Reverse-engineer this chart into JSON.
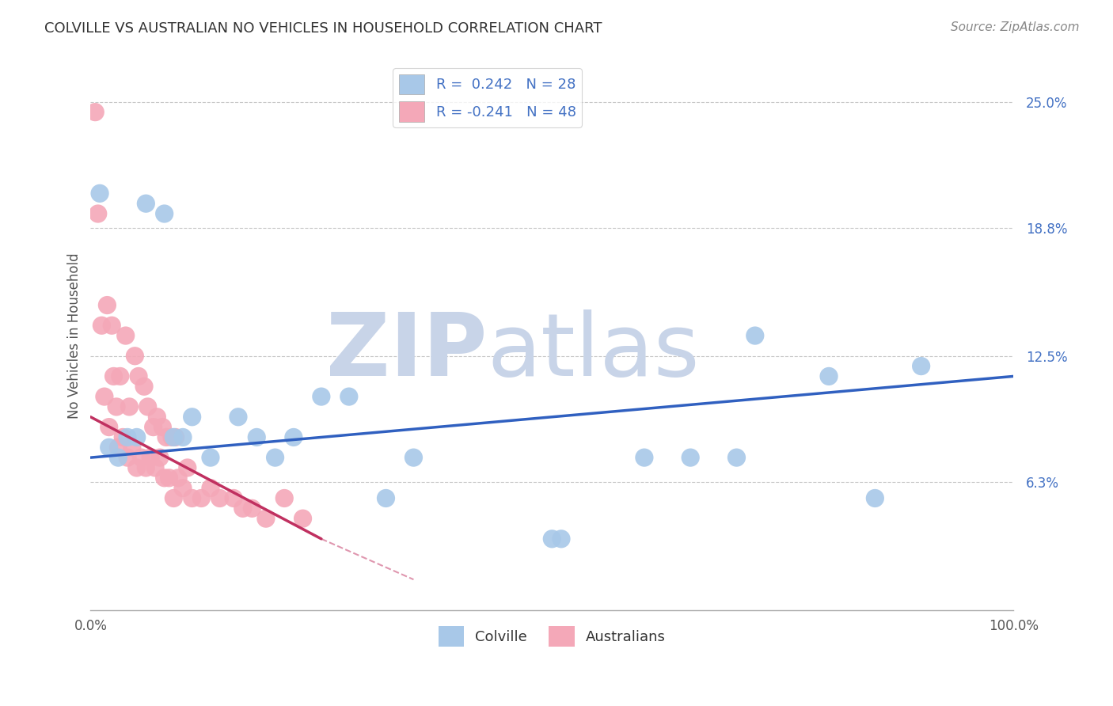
{
  "title": "COLVILLE VS AUSTRALIAN NO VEHICLES IN HOUSEHOLD CORRELATION CHART",
  "source_text": "Source: ZipAtlas.com",
  "ylabel": "No Vehicles in Household",
  "legend_colville": "Colville",
  "legend_australians": "Australians",
  "r_colville": 0.242,
  "n_colville": 28,
  "r_australians": -0.241,
  "n_australians": 48,
  "xlim": [
    0,
    100
  ],
  "ylim": [
    0,
    27
  ],
  "yticks": [
    6.3,
    12.5,
    18.8,
    25.0
  ],
  "ytick_labels": [
    "6.3%",
    "12.5%",
    "18.8%",
    "25.0%"
  ],
  "xtick_labels": [
    "0.0%",
    "100.0%"
  ],
  "colville_color": "#A8C8E8",
  "australians_color": "#F4A8B8",
  "colville_line_color": "#3060C0",
  "australians_line_color": "#C03060",
  "background_color": "#FFFFFF",
  "grid_color": "#C8C8C8",
  "watermark_zip": "ZIP",
  "watermark_atlas": "atlas",
  "watermark_color_zip": "#C8D4E8",
  "watermark_color_atlas": "#C8D4E8",
  "colville_x": [
    1.0,
    2.0,
    3.0,
    4.0,
    5.0,
    6.0,
    8.0,
    9.0,
    10.0,
    11.0,
    13.0,
    16.0,
    18.0,
    20.0,
    22.0,
    25.0,
    28.0,
    32.0,
    35.0,
    50.0,
    51.0,
    60.0,
    65.0,
    70.0,
    72.0,
    80.0,
    85.0,
    90.0
  ],
  "colville_y": [
    20.5,
    8.0,
    7.5,
    8.5,
    8.5,
    20.0,
    19.5,
    8.5,
    8.5,
    9.5,
    7.5,
    9.5,
    8.5,
    7.5,
    8.5,
    10.5,
    10.5,
    5.5,
    7.5,
    3.5,
    3.5,
    7.5,
    7.5,
    7.5,
    13.5,
    11.5,
    5.5,
    12.0
  ],
  "australians_x": [
    0.5,
    0.8,
    1.2,
    1.5,
    1.8,
    2.0,
    2.3,
    2.5,
    2.8,
    3.0,
    3.2,
    3.5,
    3.8,
    4.0,
    4.2,
    4.5,
    4.8,
    5.0,
    5.2,
    5.5,
    5.8,
    6.0,
    6.2,
    6.5,
    6.8,
    7.0,
    7.2,
    7.5,
    7.8,
    8.0,
    8.2,
    8.5,
    8.8,
    9.0,
    9.2,
    9.5,
    10.0,
    10.5,
    11.0,
    12.0,
    13.0,
    14.0,
    15.5,
    16.5,
    17.5,
    19.0,
    21.0,
    23.0
  ],
  "australians_y": [
    24.5,
    19.5,
    14.0,
    10.5,
    15.0,
    9.0,
    14.0,
    11.5,
    10.0,
    8.0,
    11.5,
    8.5,
    13.5,
    7.5,
    10.0,
    8.0,
    12.5,
    7.0,
    11.5,
    7.5,
    11.0,
    7.0,
    10.0,
    7.5,
    9.0,
    7.0,
    9.5,
    7.5,
    9.0,
    6.5,
    8.5,
    6.5,
    8.5,
    5.5,
    8.5,
    6.5,
    6.0,
    7.0,
    5.5,
    5.5,
    6.0,
    5.5,
    5.5,
    5.0,
    5.0,
    4.5,
    5.5,
    4.5
  ],
  "colville_trend_x": [
    0,
    100
  ],
  "colville_trend_y": [
    7.5,
    11.5
  ],
  "australians_trend_x": [
    0,
    25
  ],
  "australians_trend_y": [
    9.5,
    3.5
  ],
  "title_fontsize": 13,
  "source_fontsize": 11,
  "tick_fontsize": 12,
  "ylabel_fontsize": 12
}
